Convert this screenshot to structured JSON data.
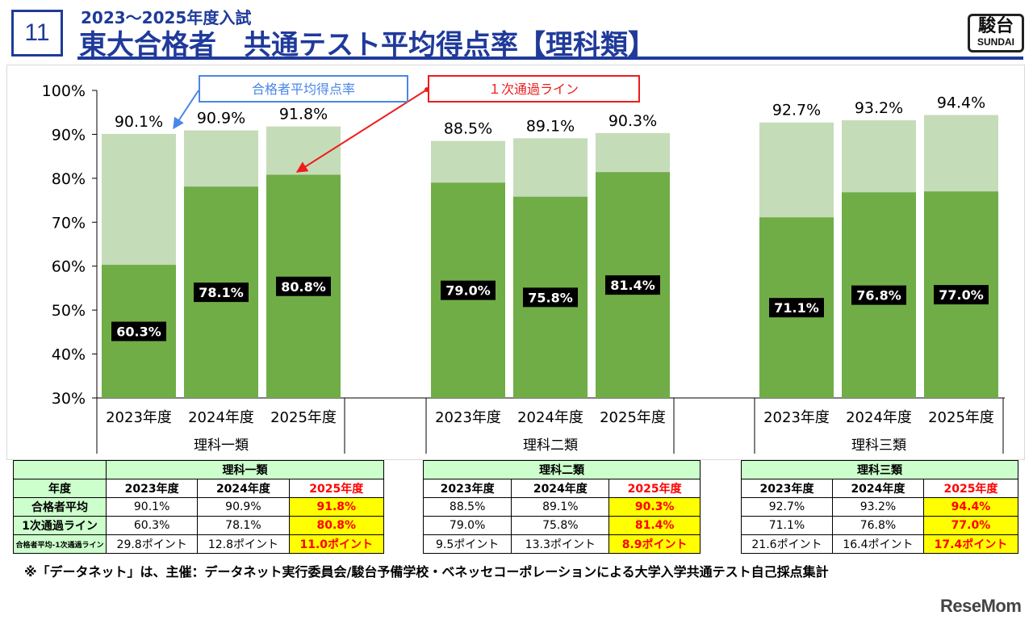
{
  "slide_number": "11",
  "subtitle": "2023～2025年度入試",
  "title": "東大合格者　共通テスト平均得点率【理科類】",
  "logo": {
    "line1": "駿台",
    "line2": "SUNDAI"
  },
  "chart_data": {
    "type": "bar",
    "title": "東大合格者 共通テスト平均得点率【理科類】",
    "ylim": [
      30,
      100
    ],
    "yticks": [
      "30%",
      "40%",
      "50%",
      "60%",
      "70%",
      "80%",
      "90%",
      "100%"
    ],
    "ytick_values": [
      30,
      40,
      50,
      60,
      70,
      80,
      90,
      100
    ],
    "legend": {
      "average": "合格者平均得点率",
      "cutoff": "１次通過ライン"
    },
    "colors": {
      "average": "#c5dcb9",
      "cutoff": "#70ad47",
      "avg_arrow": "#4a86e8",
      "cut_arrow": "#ee1c1c"
    },
    "groups": [
      {
        "name": "理科一類",
        "categories": [
          "2023年度",
          "2024年度",
          "2025年度"
        ],
        "average": [
          90.1,
          90.9,
          91.8
        ],
        "cutoff": [
          60.3,
          78.1,
          80.8
        ],
        "average_labels": [
          "90.1%",
          "90.9%",
          "91.8%"
        ],
        "cutoff_labels": [
          "60.3%",
          "78.1%",
          "80.8%"
        ]
      },
      {
        "name": "理科二類",
        "categories": [
          "2023年度",
          "2024年度",
          "2025年度"
        ],
        "average": [
          88.5,
          89.1,
          90.3
        ],
        "cutoff": [
          79.0,
          75.8,
          81.4
        ],
        "average_labels": [
          "88.5%",
          "89.1%",
          "90.3%"
        ],
        "cutoff_labels": [
          "79.0%",
          "75.8%",
          "81.4%"
        ]
      },
      {
        "name": "理科三類",
        "categories": [
          "2023年度",
          "2024年度",
          "2025年度"
        ],
        "average": [
          92.7,
          93.2,
          94.4
        ],
        "cutoff": [
          71.1,
          76.8,
          77.0
        ],
        "average_labels": [
          "92.7%",
          "93.2%",
          "94.4%"
        ],
        "cutoff_labels": [
          "71.1%",
          "76.8%",
          "77.0%"
        ]
      }
    ]
  },
  "tables": [
    {
      "group": "理科一類",
      "header": "年度",
      "years": [
        "2023年度",
        "2024年度",
        "2025年度"
      ],
      "rows": [
        {
          "label": "合格者平均",
          "values": [
            "90.1%",
            "90.9%",
            "91.8%"
          ]
        },
        {
          "label": "1次通過ライン",
          "values": [
            "60.3%",
            "78.1%",
            "80.8%"
          ]
        },
        {
          "label": "合格者平均-1次通過ライン",
          "values": [
            "29.8ポイント",
            "12.8ポイント",
            "11.0ポイント"
          ]
        }
      ]
    },
    {
      "group": "理科二類",
      "years": [
        "2023年度",
        "2024年度",
        "2025年度"
      ],
      "rows": [
        {
          "values": [
            "88.5%",
            "89.1%",
            "90.3%"
          ]
        },
        {
          "values": [
            "79.0%",
            "75.8%",
            "81.4%"
          ]
        },
        {
          "values": [
            "9.5ポイント",
            "13.3ポイント",
            "8.9ポイント"
          ]
        }
      ]
    },
    {
      "group": "理科三類",
      "years": [
        "2023年度",
        "2024年度",
        "2025年度"
      ],
      "rows": [
        {
          "values": [
            "92.7%",
            "93.2%",
            "94.4%"
          ]
        },
        {
          "values": [
            "71.1%",
            "76.8%",
            "77.0%"
          ]
        },
        {
          "values": [
            "21.6ポイント",
            "16.4ポイント",
            "17.4ポイント"
          ]
        }
      ]
    }
  ],
  "footnote": "※「データネット」は、主催：データネット実行委員会/駿台予備学校・ベネッセコーポレーションによる大学入学共通テスト自己採点集計",
  "watermark": "ReseMom"
}
